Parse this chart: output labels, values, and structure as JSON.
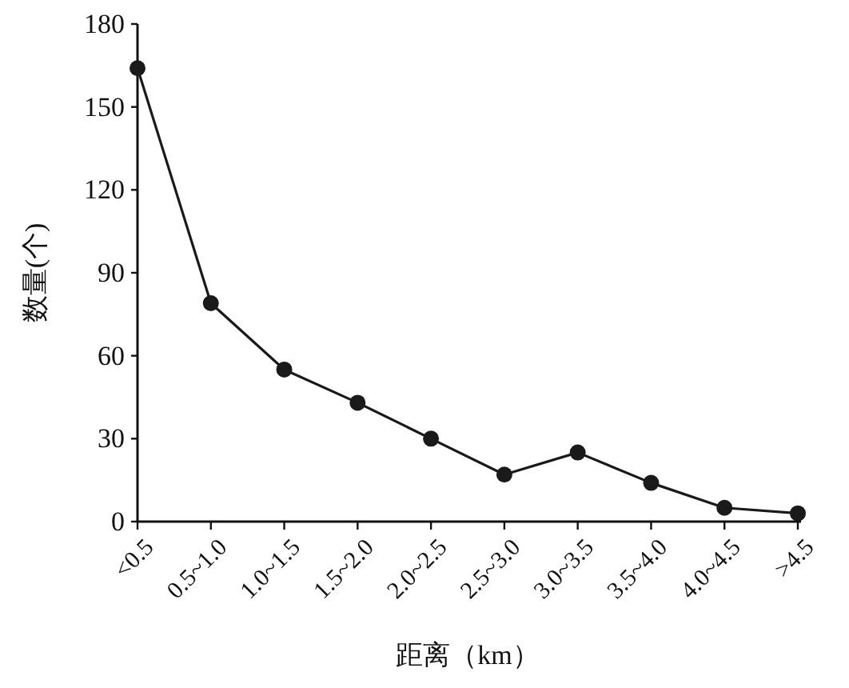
{
  "chart_data": {
    "type": "line",
    "xlabel": "距离（km）",
    "ylabel": "数量(个)",
    "categories": [
      "<0.5",
      "0.5~1.0",
      "1.0~1.5",
      "1.5~2.0",
      "2.0~2.5",
      "2.5~3.0",
      "3.0~3.5",
      "3.5~4.0",
      "4.0~4.5",
      ">4.5"
    ],
    "series": [
      {
        "color": "#1a1a1a",
        "values": [
          164,
          79,
          55,
          43,
          30,
          17,
          25,
          14,
          5,
          3
        ]
      }
    ],
    "ylim": [
      0,
      180
    ],
    "yticks": [
      0,
      30,
      60,
      90,
      120,
      150,
      180
    ],
    "marker": "circle",
    "line_style": "solid"
  }
}
